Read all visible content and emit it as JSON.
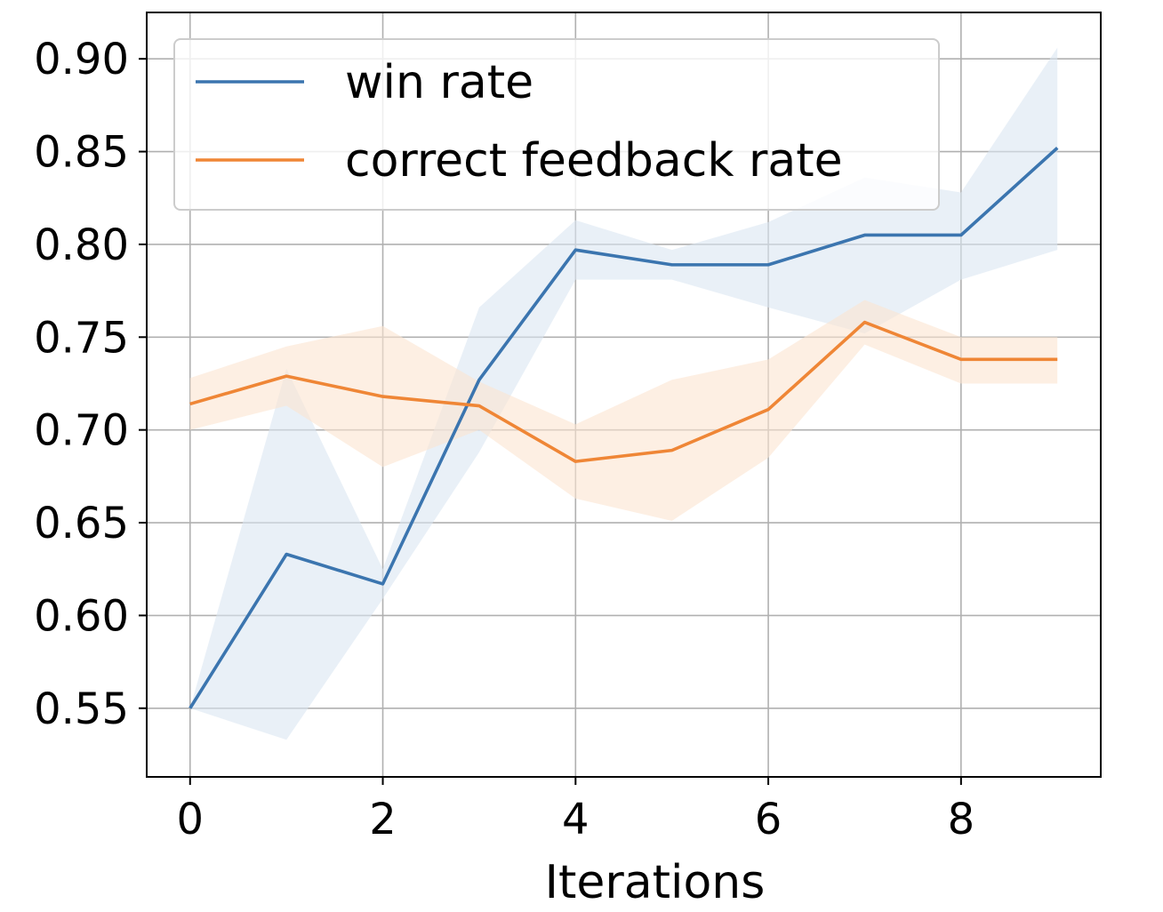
{
  "chart_data": {
    "type": "line",
    "xlabel": "Iterations",
    "ylabel": "",
    "xlim": [
      -0.45,
      9.45
    ],
    "ylim": [
      0.513,
      0.925
    ],
    "xticks": [
      0,
      2,
      4,
      6,
      8
    ],
    "xtick_labels": [
      "0",
      "2",
      "4",
      "6",
      "8"
    ],
    "yticks": [
      0.55,
      0.6,
      0.65,
      0.7,
      0.75,
      0.8,
      0.85,
      0.9
    ],
    "ytick_labels": [
      "0.55",
      "0.60",
      "0.65",
      "0.70",
      "0.75",
      "0.80",
      "0.85",
      "0.90"
    ],
    "grid": true,
    "legend_position": "top-left",
    "x": [
      0,
      1,
      2,
      3,
      4,
      5,
      6,
      7,
      8,
      9
    ],
    "series": [
      {
        "name": "win rate",
        "color": "#3b75af",
        "fill": "#dbe6f2",
        "values": [
          0.55,
          0.633,
          0.617,
          0.727,
          0.797,
          0.789,
          0.789,
          0.805,
          0.805,
          0.852
        ],
        "lower": [
          0.55,
          0.533,
          0.609,
          0.688,
          0.781,
          0.781,
          0.766,
          0.752,
          0.781,
          0.797
        ],
        "upper": [
          0.55,
          0.733,
          0.625,
          0.766,
          0.813,
          0.797,
          0.812,
          0.836,
          0.828,
          0.906
        ]
      },
      {
        "name": "correct feedback rate",
        "color": "#ef8636",
        "fill": "#fbe4d0",
        "values": [
          0.714,
          0.729,
          0.718,
          0.713,
          0.683,
          0.689,
          0.711,
          0.758,
          0.738,
          0.738
        ],
        "lower": [
          0.7,
          0.713,
          0.68,
          0.7,
          0.663,
          0.651,
          0.685,
          0.746,
          0.725,
          0.725
        ],
        "upper": [
          0.728,
          0.745,
          0.756,
          0.726,
          0.703,
          0.727,
          0.738,
          0.77,
          0.75,
          0.75
        ]
      }
    ]
  }
}
